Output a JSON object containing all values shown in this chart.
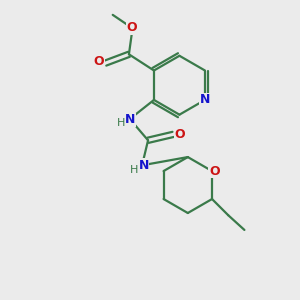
{
  "background_color": "#ebebeb",
  "bond_color": "#3a7a4a",
  "nitrogen_color": "#1414cc",
  "oxygen_color": "#cc1414",
  "line_width": 1.6,
  "figsize": [
    3.0,
    3.0
  ],
  "dpi": 100,
  "xlim": [
    0,
    10
  ],
  "ylim": [
    0,
    10
  ]
}
